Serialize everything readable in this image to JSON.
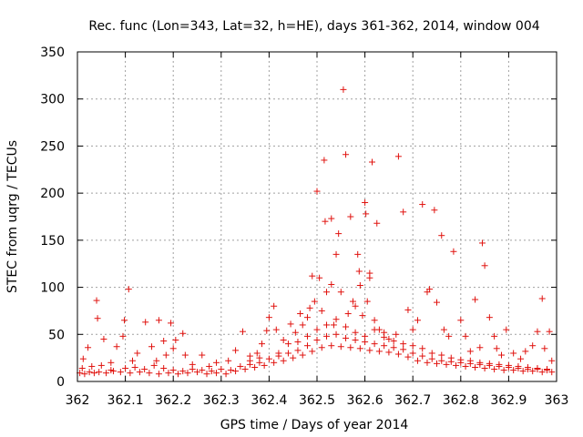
{
  "chart_data": {
    "type": "scatter",
    "title": "Rec. func (Lon=343, Lat=32, h=HE), days 361-362, 2014, window 004",
    "xlabel": "GPS time / Days of year 2014",
    "ylabel": "STEC from uqrg / TECUs",
    "xlim": [
      362,
      363
    ],
    "ylim": [
      0,
      350
    ],
    "x_ticks": [
      "362",
      "362.1",
      "362.2",
      "362.3",
      "362.4",
      "362.5",
      "362.6",
      "362.7",
      "362.8",
      "362.9",
      "363"
    ],
    "y_ticks": [
      "0",
      "50",
      "100",
      "150",
      "200",
      "250",
      "300",
      "350"
    ],
    "grid": true,
    "marker": "+",
    "color": "#e0120e",
    "points": [
      [
        362.005,
        9
      ],
      [
        362.015,
        8
      ],
      [
        362.025,
        10
      ],
      [
        362.035,
        9
      ],
      [
        362.045,
        10
      ],
      [
        362.06,
        9
      ],
      [
        362.075,
        11
      ],
      [
        362.09,
        10
      ],
      [
        362.11,
        9
      ],
      [
        362.13,
        10
      ],
      [
        362.15,
        9
      ],
      [
        362.17,
        8
      ],
      [
        362.19,
        9
      ],
      [
        362.21,
        8
      ],
      [
        362.23,
        9
      ],
      [
        362.25,
        10
      ],
      [
        362.27,
        8
      ],
      [
        362.29,
        9
      ],
      [
        362.31,
        8
      ],
      [
        362.33,
        11
      ],
      [
        362.35,
        13
      ],
      [
        362.37,
        15
      ],
      [
        362.39,
        17
      ],
      [
        362.41,
        20
      ],
      [
        362.43,
        22
      ],
      [
        362.45,
        25
      ],
      [
        362.47,
        28
      ],
      [
        362.49,
        32
      ],
      [
        362.51,
        36
      ],
      [
        362.53,
        38
      ],
      [
        362.55,
        37
      ],
      [
        362.57,
        36
      ],
      [
        362.59,
        35
      ],
      [
        362.61,
        33
      ],
      [
        362.63,
        32
      ],
      [
        362.65,
        31
      ],
      [
        362.67,
        29
      ],
      [
        362.69,
        26
      ],
      [
        362.71,
        22
      ],
      [
        362.73,
        20
      ],
      [
        362.75,
        19
      ],
      [
        362.77,
        18
      ],
      [
        362.79,
        17
      ],
      [
        362.81,
        16
      ],
      [
        362.83,
        15
      ],
      [
        362.85,
        14
      ],
      [
        362.87,
        13
      ],
      [
        362.89,
        12
      ],
      [
        362.91,
        12
      ],
      [
        362.93,
        11
      ],
      [
        362.95,
        11
      ],
      [
        362.97,
        10
      ],
      [
        362.99,
        10
      ],
      [
        362.01,
        14
      ],
      [
        362.03,
        16
      ],
      [
        362.05,
        17
      ],
      [
        362.07,
        12
      ],
      [
        362.1,
        14
      ],
      [
        362.12,
        15
      ],
      [
        362.14,
        13
      ],
      [
        362.16,
        17
      ],
      [
        362.18,
        14
      ],
      [
        362.2,
        12
      ],
      [
        362.22,
        11
      ],
      [
        362.24,
        13
      ],
      [
        362.26,
        12
      ],
      [
        362.28,
        11
      ],
      [
        362.3,
        13
      ],
      [
        362.32,
        12
      ],
      [
        362.34,
        16
      ],
      [
        362.36,
        18
      ],
      [
        362.38,
        20
      ],
      [
        362.4,
        24
      ],
      [
        362.42,
        27
      ],
      [
        362.44,
        30
      ],
      [
        362.46,
        33
      ],
      [
        362.48,
        38
      ],
      [
        362.5,
        44
      ],
      [
        362.52,
        48
      ],
      [
        362.54,
        50
      ],
      [
        362.56,
        46
      ],
      [
        362.58,
        44
      ],
      [
        362.6,
        42
      ],
      [
        362.62,
        40
      ],
      [
        362.64,
        38
      ],
      [
        362.66,
        36
      ],
      [
        362.68,
        34
      ],
      [
        362.7,
        30
      ],
      [
        362.72,
        27
      ],
      [
        362.74,
        24
      ],
      [
        362.76,
        22
      ],
      [
        362.78,
        21
      ],
      [
        362.8,
        20
      ],
      [
        362.82,
        19
      ],
      [
        362.84,
        18
      ],
      [
        362.86,
        17
      ],
      [
        362.88,
        16
      ],
      [
        362.9,
        15
      ],
      [
        362.92,
        14
      ],
      [
        362.94,
        13
      ],
      [
        362.96,
        13
      ],
      [
        362.98,
        12
      ],
      [
        362.012,
        24
      ],
      [
        362.022,
        36
      ],
      [
        362.04,
        86
      ],
      [
        362.042,
        67
      ],
      [
        362.055,
        45
      ],
      [
        362.07,
        20
      ],
      [
        362.082,
        37
      ],
      [
        362.095,
        48
      ],
      [
        362.098,
        65
      ],
      [
        362.107,
        98
      ],
      [
        362.115,
        22
      ],
      [
        362.125,
        30
      ],
      [
        362.142,
        63
      ],
      [
        362.155,
        37
      ],
      [
        362.165,
        22
      ],
      [
        362.17,
        65
      ],
      [
        362.18,
        43
      ],
      [
        362.185,
        28
      ],
      [
        362.195,
        62
      ],
      [
        362.2,
        35
      ],
      [
        362.205,
        44
      ],
      [
        362.22,
        51
      ],
      [
        362.225,
        28
      ],
      [
        362.24,
        18
      ],
      [
        362.26,
        28
      ],
      [
        362.275,
        16
      ],
      [
        362.29,
        20
      ],
      [
        362.315,
        22
      ],
      [
        362.33,
        33
      ],
      [
        362.345,
        53
      ],
      [
        362.36,
        27
      ],
      [
        362.375,
        30
      ],
      [
        362.385,
        40
      ],
      [
        362.395,
        54
      ],
      [
        362.4,
        68
      ],
      [
        362.41,
        80
      ],
      [
        362.415,
        55
      ],
      [
        362.43,
        44
      ],
      [
        362.445,
        61
      ],
      [
        362.455,
        52
      ],
      [
        362.465,
        72
      ],
      [
        362.47,
        60
      ],
      [
        362.48,
        68
      ],
      [
        362.485,
        78
      ],
      [
        362.49,
        112
      ],
      [
        362.495,
        85
      ],
      [
        362.5,
        202
      ],
      [
        362.505,
        110
      ],
      [
        362.51,
        75
      ],
      [
        362.515,
        235
      ],
      [
        362.517,
        170
      ],
      [
        362.52,
        95
      ],
      [
        362.53,
        173
      ],
      [
        362.53,
        103
      ],
      [
        362.535,
        60
      ],
      [
        362.54,
        135
      ],
      [
        362.545,
        157
      ],
      [
        362.55,
        95
      ],
      [
        362.555,
        310
      ],
      [
        362.56,
        241
      ],
      [
        362.565,
        72
      ],
      [
        362.57,
        175
      ],
      [
        362.575,
        85
      ],
      [
        362.58,
        80
      ],
      [
        362.585,
        135
      ],
      [
        362.588,
        117
      ],
      [
        362.59,
        102
      ],
      [
        362.595,
        70
      ],
      [
        362.6,
        190
      ],
      [
        362.602,
        178
      ],
      [
        362.605,
        85
      ],
      [
        362.61,
        115
      ],
      [
        362.61,
        110
      ],
      [
        362.615,
        233
      ],
      [
        362.62,
        65
      ],
      [
        362.625,
        168
      ],
      [
        362.63,
        55
      ],
      [
        362.64,
        52
      ],
      [
        362.65,
        45
      ],
      [
        362.665,
        50
      ],
      [
        362.67,
        239
      ],
      [
        362.68,
        180
      ],
      [
        362.69,
        76
      ],
      [
        362.7,
        55
      ],
      [
        362.71,
        65
      ],
      [
        362.72,
        188
      ],
      [
        362.73,
        95
      ],
      [
        362.735,
        98
      ],
      [
        362.745,
        182
      ],
      [
        362.75,
        84
      ],
      [
        362.76,
        155
      ],
      [
        362.765,
        55
      ],
      [
        362.775,
        48
      ],
      [
        362.785,
        138
      ],
      [
        362.8,
        65
      ],
      [
        362.81,
        48
      ],
      [
        362.82,
        32
      ],
      [
        362.83,
        87
      ],
      [
        362.84,
        36
      ],
      [
        362.845,
        147
      ],
      [
        362.85,
        123
      ],
      [
        362.86,
        68
      ],
      [
        362.87,
        48
      ],
      [
        362.875,
        35
      ],
      [
        362.885,
        28
      ],
      [
        362.895,
        55
      ],
      [
        362.91,
        30
      ],
      [
        362.925,
        24
      ],
      [
        362.935,
        32
      ],
      [
        362.95,
        38
      ],
      [
        362.96,
        53
      ],
      [
        362.97,
        88
      ],
      [
        362.975,
        35
      ],
      [
        362.985,
        53
      ],
      [
        362.99,
        22
      ],
      [
        362.36,
        22
      ],
      [
        362.38,
        25
      ],
      [
        362.42,
        30
      ],
      [
        362.44,
        40
      ],
      [
        362.46,
        42
      ],
      [
        362.48,
        48
      ],
      [
        362.5,
        55
      ],
      [
        362.52,
        60
      ],
      [
        362.54,
        66
      ],
      [
        362.56,
        58
      ],
      [
        362.58,
        52
      ],
      [
        362.6,
        48
      ],
      [
        362.62,
        55
      ],
      [
        362.64,
        47
      ],
      [
        362.66,
        43
      ],
      [
        362.68,
        40
      ],
      [
        362.7,
        38
      ],
      [
        362.72,
        35
      ],
      [
        362.74,
        30
      ],
      [
        362.76,
        28
      ],
      [
        362.78,
        25
      ],
      [
        362.8,
        23
      ],
      [
        362.82,
        22
      ],
      [
        362.84,
        20
      ],
      [
        362.86,
        19
      ],
      [
        362.88,
        18
      ],
      [
        362.9,
        17
      ],
      [
        362.92,
        16
      ],
      [
        362.94,
        15
      ],
      [
        362.96,
        14
      ],
      [
        362.98,
        13
      ]
    ]
  }
}
